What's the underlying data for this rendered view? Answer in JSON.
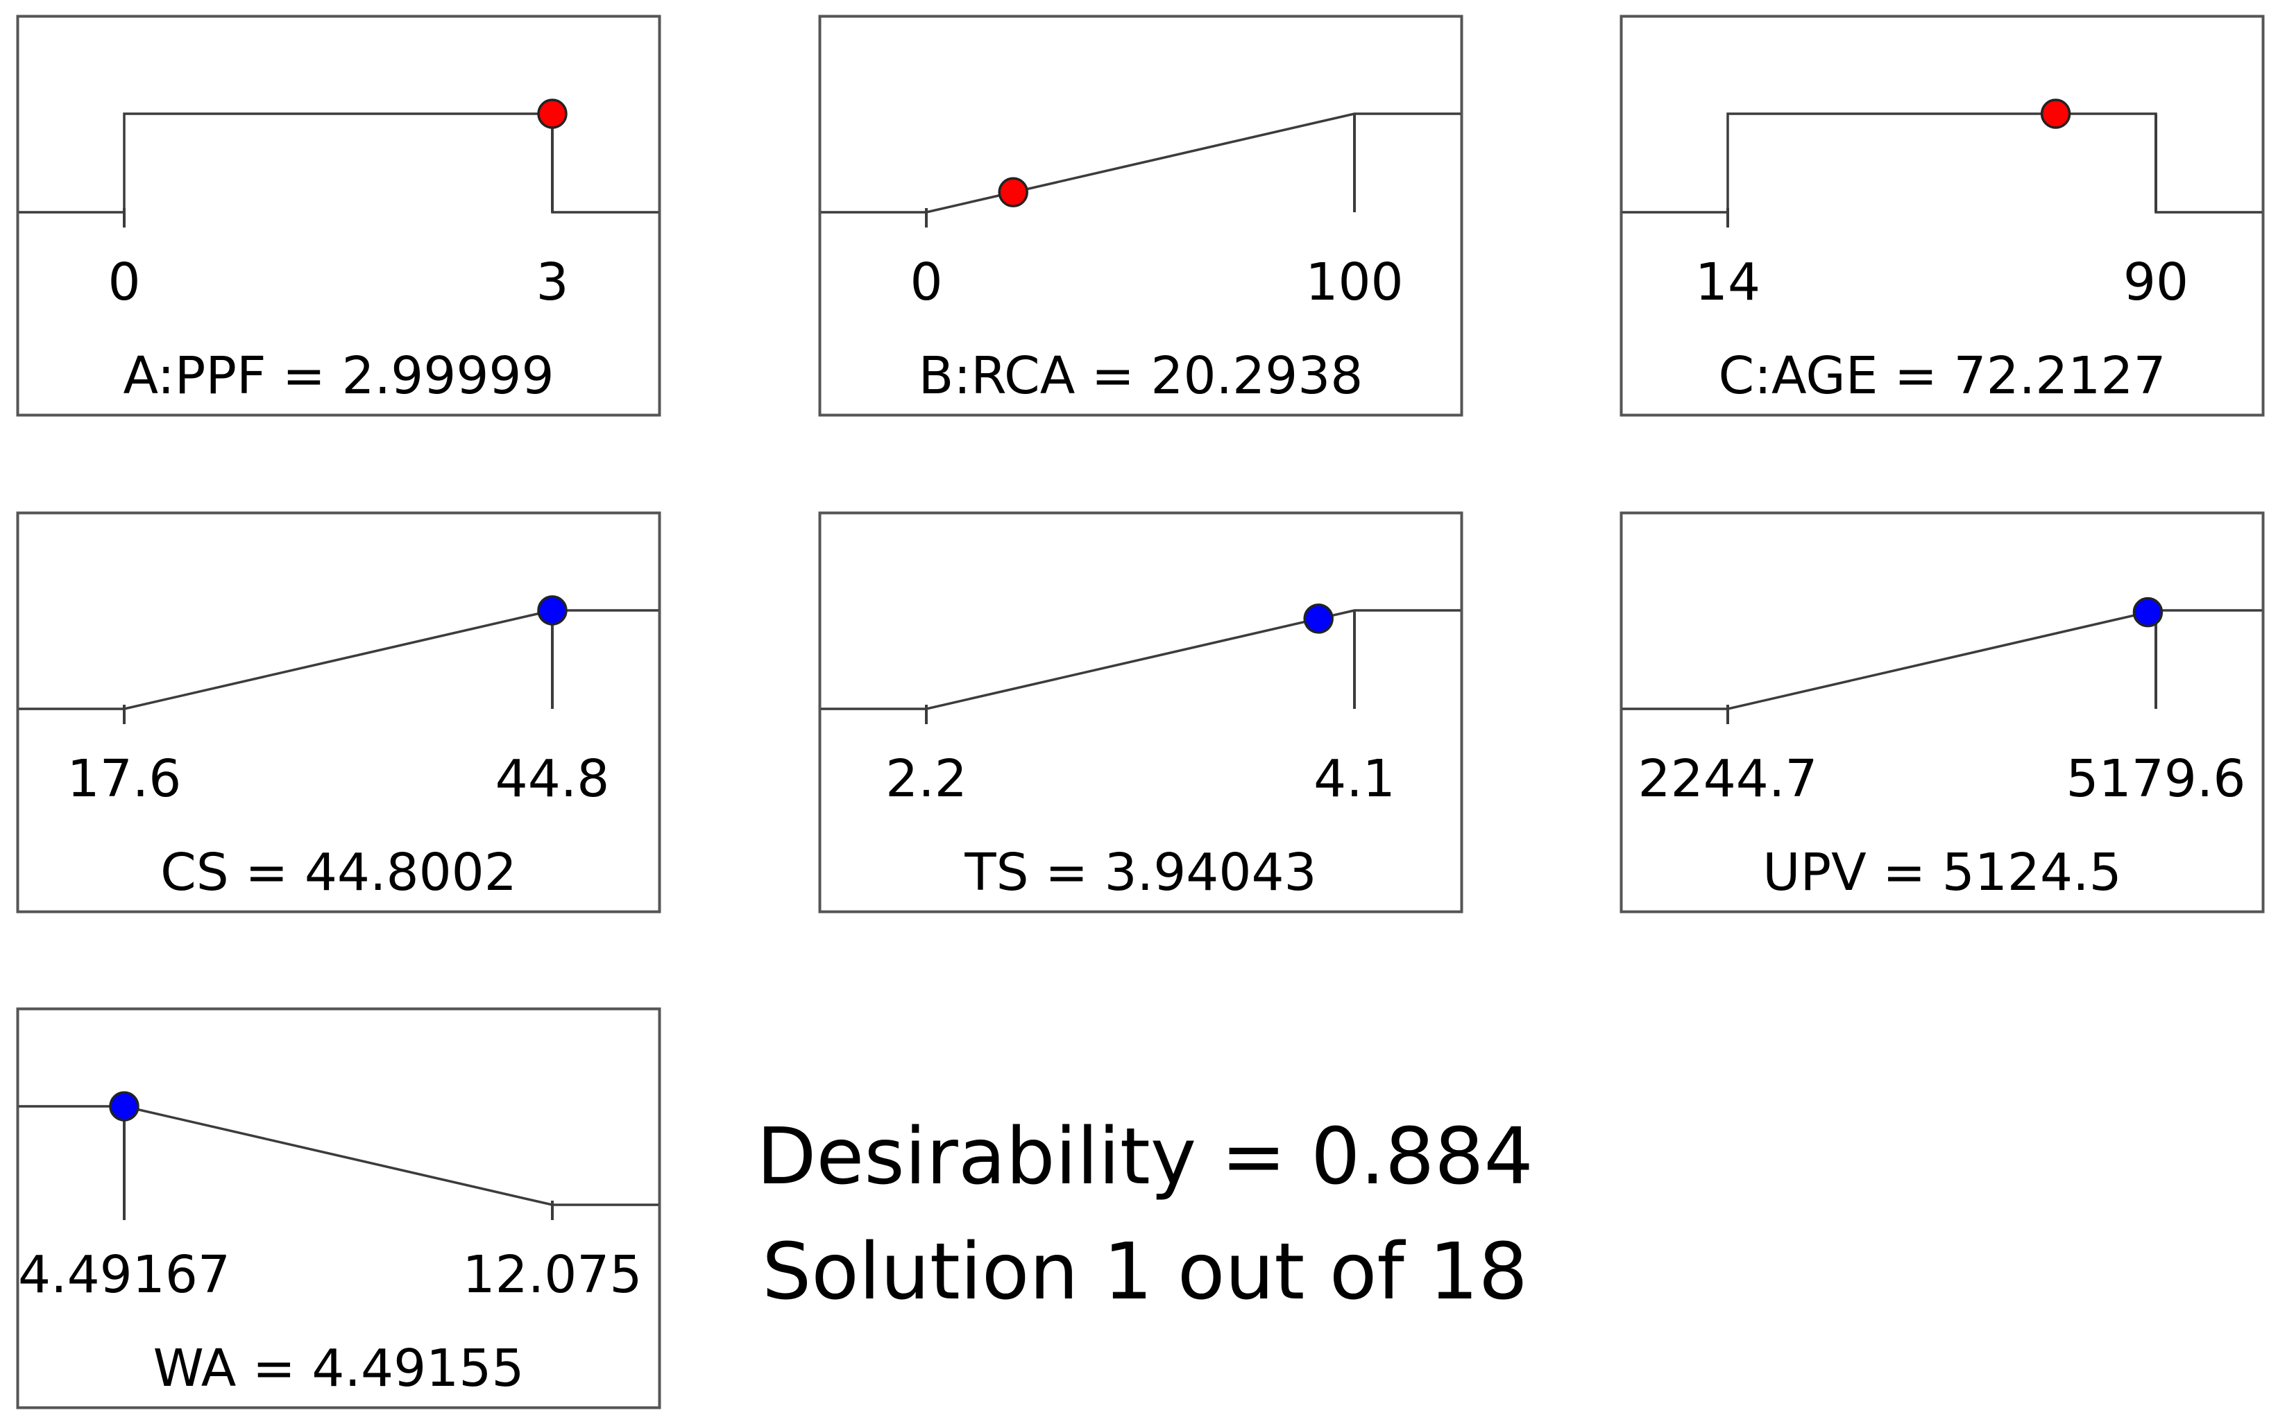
{
  "chart_data": {
    "type": "desirability-ramp",
    "colors": {
      "factor_point": "#ff0000",
      "response_point": "#0000ff",
      "line": "#3c3c3c",
      "frame": "#555555"
    },
    "panels": [
      {
        "kind": "factor",
        "label": "A:PPF = 2.99999",
        "shape": "in-range",
        "low_label": "0",
        "high_label": "3",
        "low": 0,
        "high": 3,
        "value": 2.99999
      },
      {
        "kind": "factor",
        "label": "B:RCA = 20.2938",
        "shape": "maximize",
        "low_label": "0",
        "high_label": "100",
        "low": 0,
        "high": 100,
        "value": 20.2938
      },
      {
        "kind": "factor",
        "label": "C:AGE = 72.2127",
        "shape": "in-range",
        "low_label": "14",
        "high_label": "90",
        "low": 14,
        "high": 90,
        "value": 72.2127
      },
      {
        "kind": "response",
        "label": "CS = 44.8002",
        "shape": "maximize",
        "low_label": "17.6",
        "high_label": "44.8",
        "low": 17.6,
        "high": 44.8,
        "value": 44.8002
      },
      {
        "kind": "response",
        "label": "TS = 3.94043",
        "shape": "maximize",
        "low_label": "2.2",
        "high_label": "4.1",
        "low": 2.2,
        "high": 4.1,
        "value": 3.94043
      },
      {
        "kind": "response",
        "label": "UPV = 5124.5",
        "shape": "maximize",
        "low_label": "2244.7",
        "high_label": "5179.6",
        "low": 2244.7,
        "high": 5179.6,
        "value": 5124.5
      },
      {
        "kind": "response",
        "label": "WA = 4.49155",
        "shape": "minimize",
        "low_label": "4.49167",
        "high_label": "12.075",
        "low": 4.49167,
        "high": 12.075,
        "value": 4.49155
      }
    ]
  },
  "summary": {
    "desirability": "Desirability = 0.884",
    "solution": "Solution 1 out of 18"
  }
}
